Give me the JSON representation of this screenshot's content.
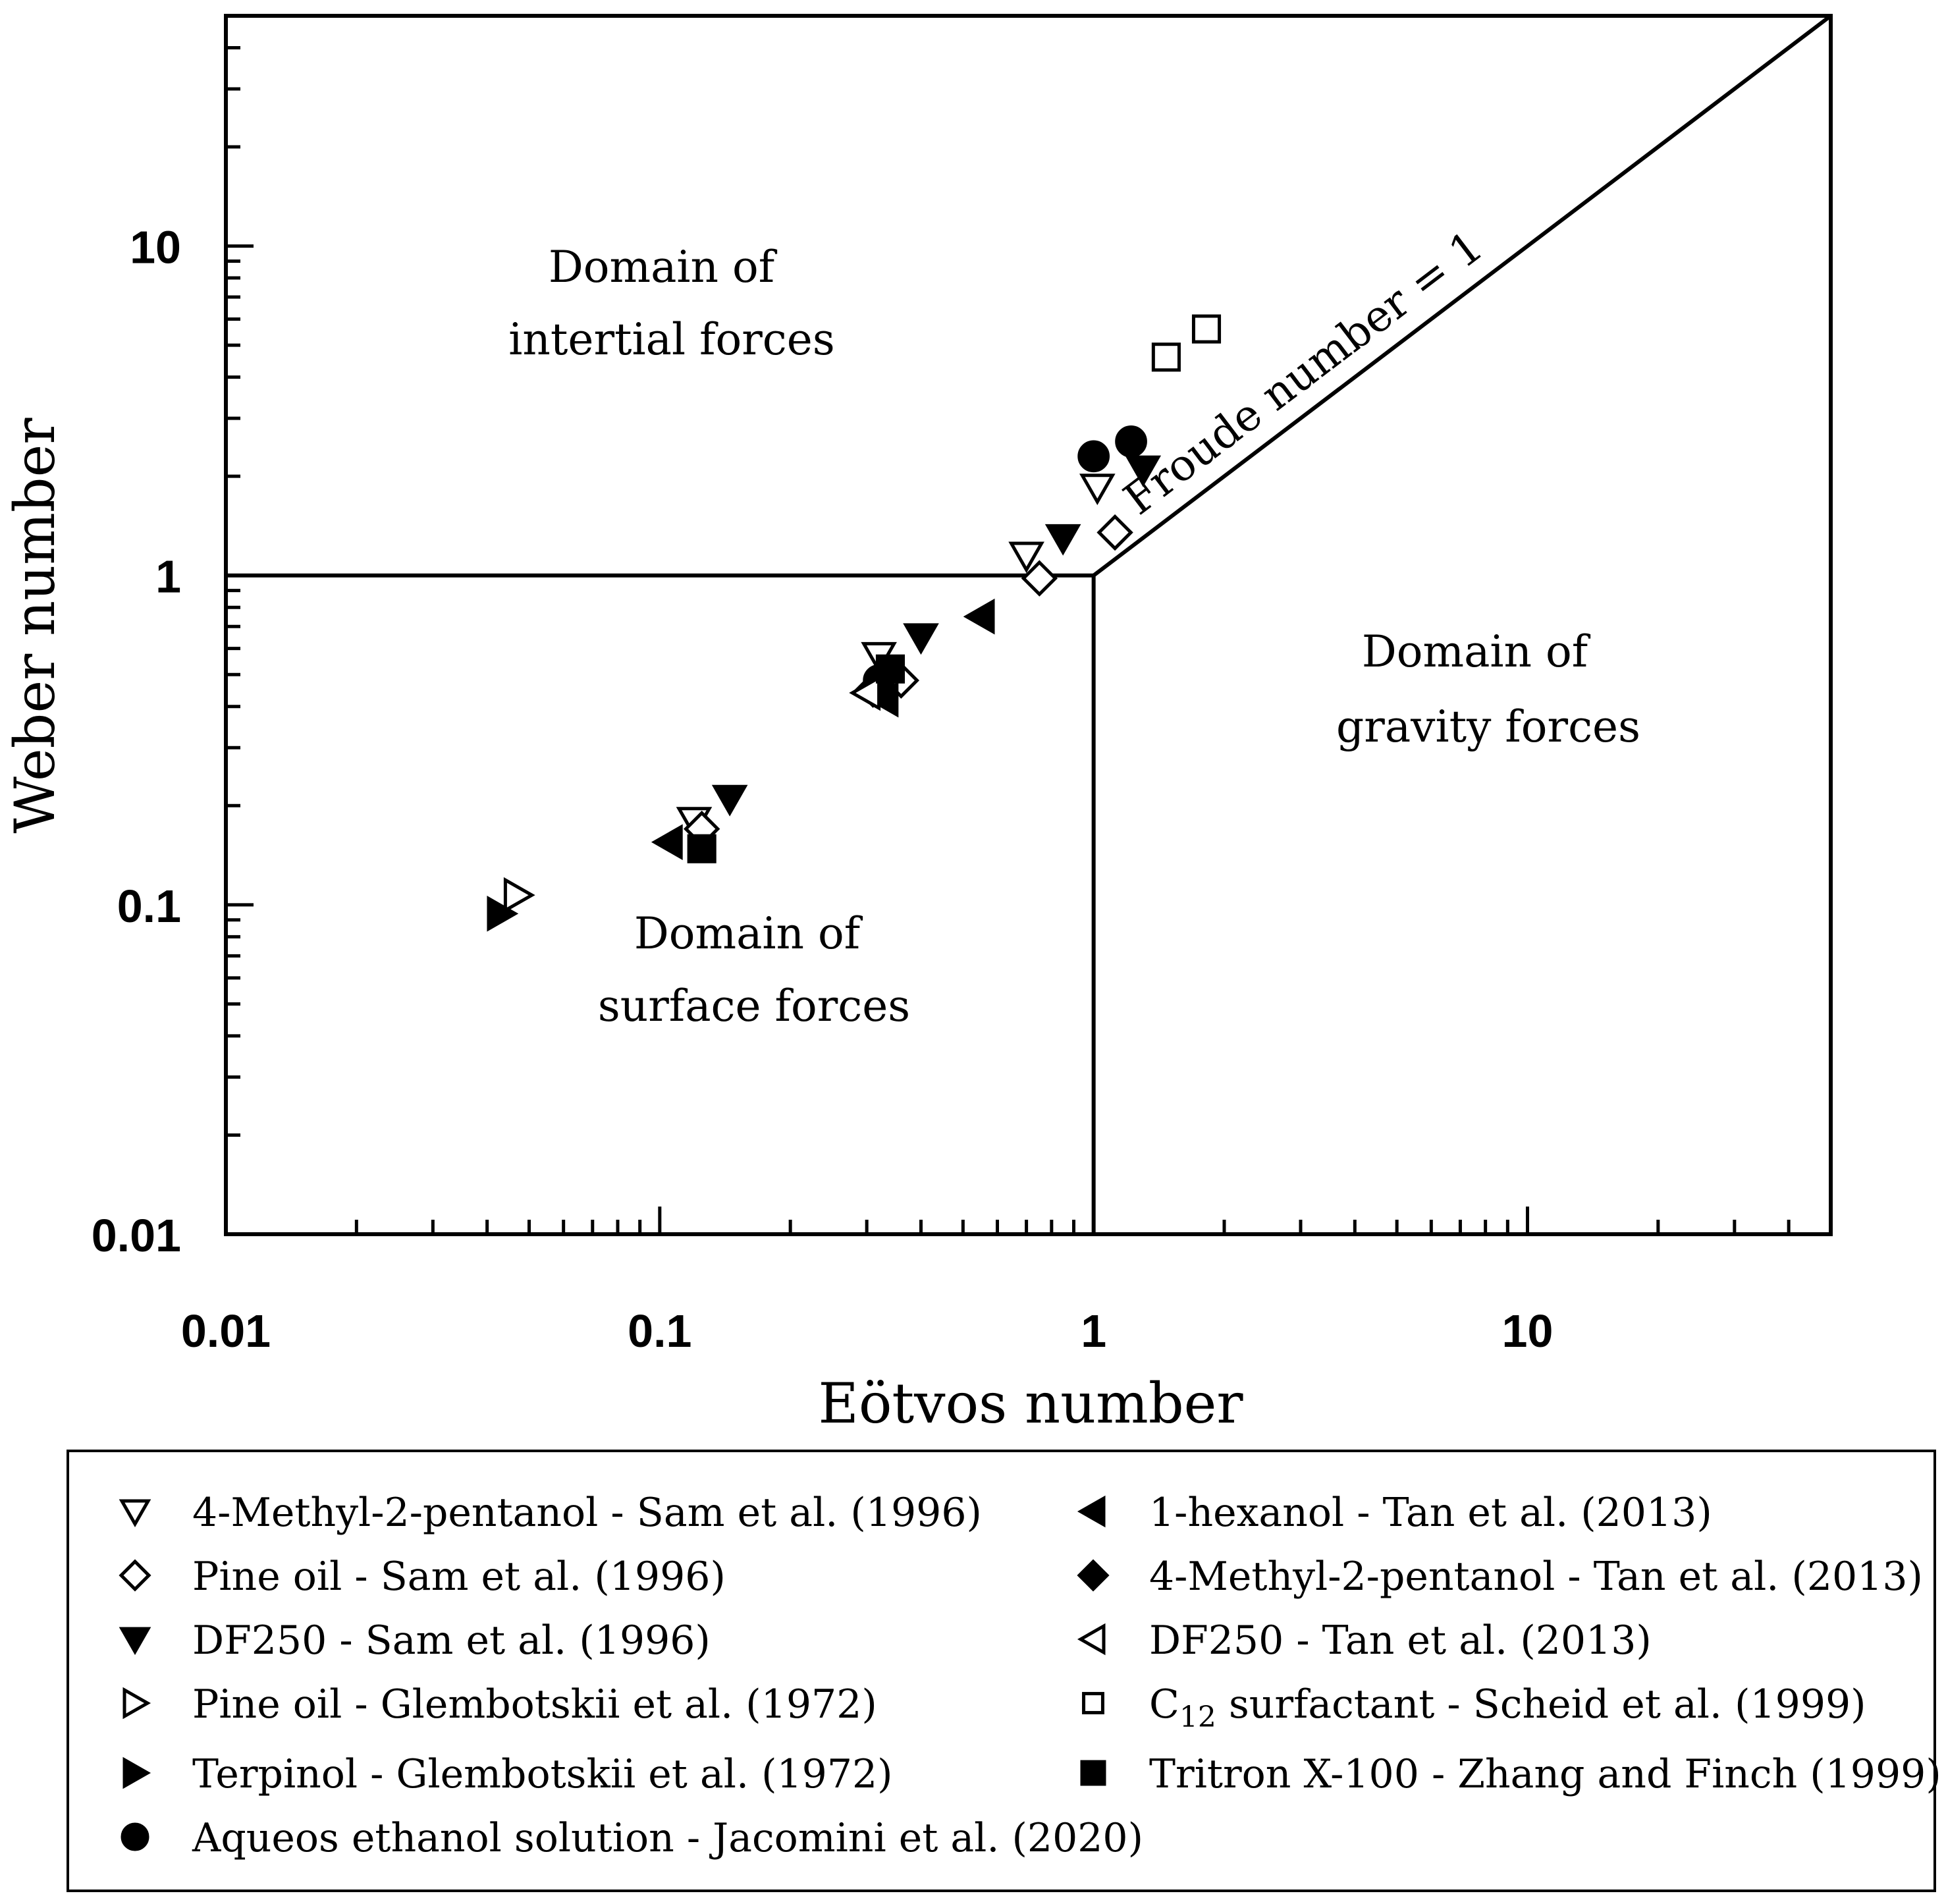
{
  "chart_data": {
    "type": "scatter",
    "xscale": "log",
    "yscale": "log",
    "xlim": [
      0.01,
      50
    ],
    "ylim": [
      0.01,
      50
    ],
    "xlabel": "Eötvos number",
    "ylabel": "Weber number",
    "xticks": [
      {
        "value": 0.01,
        "label": "0.01"
      },
      {
        "value": 0.1,
        "label": "0.1"
      },
      {
        "value": 1,
        "label": "1"
      },
      {
        "value": 10,
        "label": "10"
      }
    ],
    "yticks": [
      {
        "value": 0.01,
        "label": "0.01"
      },
      {
        "value": 0.1,
        "label": "0.1"
      },
      {
        "value": 1,
        "label": "1"
      },
      {
        "value": 10,
        "label": "10"
      }
    ],
    "lines": [
      {
        "name": "weber-one-boundary",
        "points": [
          [
            0.01,
            1
          ],
          [
            1,
            1
          ]
        ]
      },
      {
        "name": "eotvos-one-boundary",
        "points": [
          [
            1,
            0.01
          ],
          [
            1,
            1
          ]
        ]
      },
      {
        "name": "froude-one-boundary",
        "points": [
          [
            1,
            1
          ],
          [
            50,
            50
          ]
        ],
        "label": "Froude number = 1"
      }
    ],
    "regions": [
      {
        "name": "inertial",
        "lines": [
          "Domain of",
          "intertial forces"
        ]
      },
      {
        "name": "gravity",
        "lines": [
          "Domain of",
          "gravity forces"
        ]
      },
      {
        "name": "surface",
        "lines": [
          "Domain of",
          "surface forces"
        ]
      }
    ],
    "series": [
      {
        "name": "4-Methyl-2-pentanol - Sam et al. (1996)",
        "marker": "triangle-down",
        "filled": false,
        "points": [
          [
            0.12,
            0.18
          ],
          [
            0.32,
            0.57
          ],
          [
            0.7,
            1.15
          ],
          [
            1.02,
            1.85
          ]
        ]
      },
      {
        "name": "Pine oil - Sam et al. (1996)",
        "marker": "diamond",
        "filled": false,
        "points": [
          [
            0.125,
            0.17
          ],
          [
            0.36,
            0.48
          ],
          [
            0.75,
            0.98
          ],
          [
            1.12,
            1.35
          ]
        ]
      },
      {
        "name": "DF250 - Sam et al. (1996)",
        "marker": "triangle-down",
        "filled": true,
        "points": [
          [
            0.145,
            0.21
          ],
          [
            0.4,
            0.65
          ],
          [
            0.85,
            1.3
          ],
          [
            1.3,
            2.1
          ]
        ]
      },
      {
        "name": "Pine oil - Glembotskii et al. (1972)",
        "marker": "triangle-right",
        "filled": false,
        "points": [
          [
            0.047,
            0.107
          ]
        ]
      },
      {
        "name": "Terpinol - Glembotskii et al. (1972)",
        "marker": "triangle-right",
        "filled": true,
        "points": [
          [
            0.043,
            0.094
          ]
        ]
      },
      {
        "name": "Aqueos ethanol solution - Jacomini et al. (2020)",
        "marker": "circle",
        "filled": true,
        "points": [
          [
            1.0,
            2.3
          ],
          [
            1.22,
            2.55
          ],
          [
            0.32,
            0.48
          ]
        ]
      },
      {
        "name": "1-hexanol - Tan et al. (2013)",
        "marker": "triangle-left",
        "filled": true,
        "points": [
          [
            0.105,
            0.155
          ],
          [
            0.55,
            0.75
          ],
          [
            0.33,
            0.42
          ]
        ]
      },
      {
        "name": "4-Methyl-2-pentanol - Tan et al. (2013)",
        "marker": "diamond",
        "filled": true,
        "points": [
          [
            0.31,
            0.45
          ]
        ]
      },
      {
        "name": "DF250 - Tan et al. (2013)",
        "marker": "triangle-left",
        "filled": false,
        "points": [
          [
            0.3,
            0.44
          ]
        ]
      },
      {
        "name": "C12 surfactant - Scheid et al. (1999)",
        "marker": "square",
        "filled": false,
        "points": [
          [
            1.47,
            4.6
          ],
          [
            1.82,
            5.6
          ]
        ]
      },
      {
        "name": "Tritron X-100 - Zhang and Finch (1999)",
        "marker": "square",
        "filled": true,
        "points": [
          [
            0.125,
            0.148
          ],
          [
            0.34,
            0.52
          ]
        ]
      }
    ],
    "legend": {
      "position": "bottom",
      "entries": [
        {
          "label": "4-Methyl-2-pentanol - Sam et al. (1996)",
          "marker": "triangle-down",
          "filled": false
        },
        {
          "label": "Pine oil - Sam et al. (1996)",
          "marker": "diamond",
          "filled": false
        },
        {
          "label": "DF250 - Sam et al. (1996)",
          "marker": "triangle-down",
          "filled": true
        },
        {
          "label": "Pine oil - Glembotskii et al. (1972)",
          "marker": "triangle-right",
          "filled": false
        },
        {
          "label": "Terpinol - Glembotskii et al. (1972)",
          "marker": "triangle-right",
          "filled": true
        },
        {
          "label": "Aqueos ethanol solution - Jacomini et al. (2020)",
          "marker": "circle",
          "filled": true
        },
        {
          "label": "1-hexanol - Tan et al. (2013)",
          "marker": "triangle-left",
          "filled": true
        },
        {
          "label": "4-Methyl-2-pentanol - Tan et al. (2013)",
          "marker": "diamond",
          "filled": true
        },
        {
          "label": "DF250 - Tan et al. (2013)",
          "marker": "triangle-left",
          "filled": false
        },
        {
          "label_prefix": "C",
          "label_subscript": "12",
          "label_suffix": " surfactant - Scheid et al. (1999)",
          "marker": "square",
          "filled": false
        },
        {
          "label": "Tritron X-100 - Zhang and Finch (1999)",
          "marker": "square",
          "filled": true
        }
      ]
    }
  }
}
